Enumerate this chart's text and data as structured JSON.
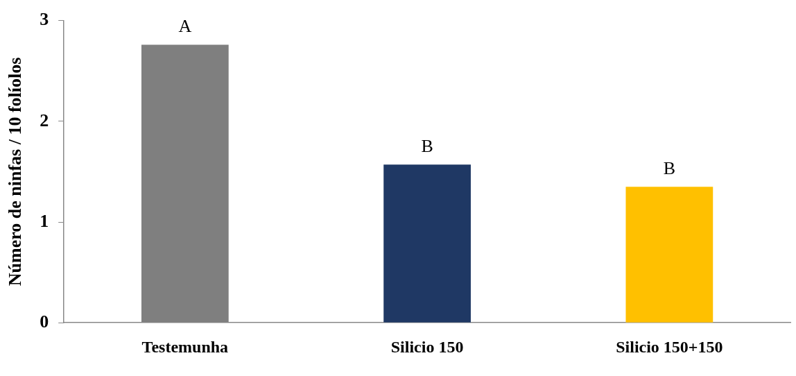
{
  "chart_data": {
    "type": "bar",
    "ylabel": "Número de ninfas / 10 folíolos",
    "categories": [
      "Testemunha",
      "Silicio 150",
      "Silicio 150+150"
    ],
    "values": [
      2.76,
      1.57,
      1.35
    ],
    "colors": [
      "#7f7f7f",
      "#1f3864",
      "#ffc000"
    ],
    "ylim": [
      0,
      3
    ],
    "yticks": [
      0,
      1,
      2,
      3
    ],
    "grid": false,
    "legend": false,
    "annotations": [
      {
        "text": "A",
        "x": "Testemunha",
        "y": 2.76
      },
      {
        "text": "B",
        "x": "Silicio 150",
        "y": 1.57
      },
      {
        "text": "B",
        "x": "Silicio 150+150",
        "y": 1.35
      }
    ]
  }
}
